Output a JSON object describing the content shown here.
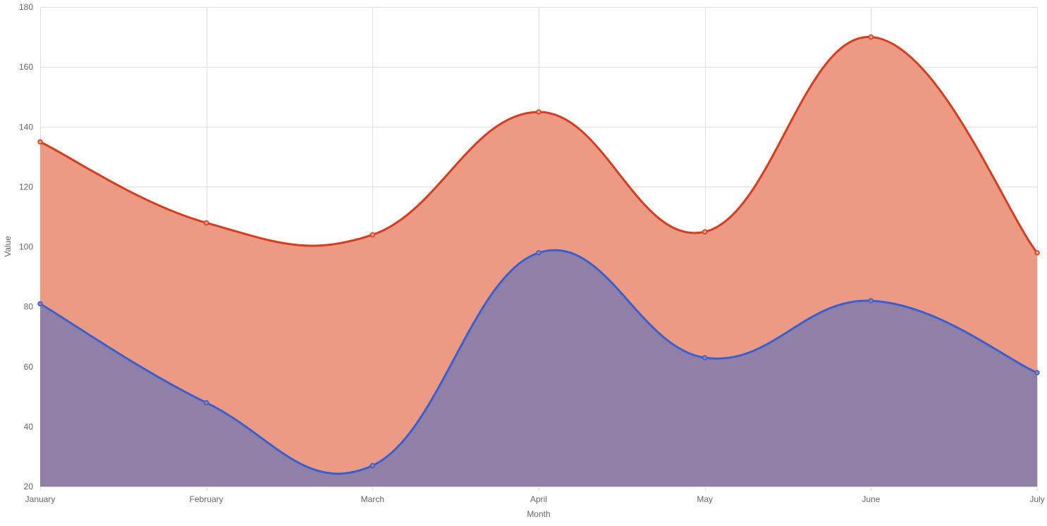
{
  "chart_data": {
    "type": "area",
    "stacked": false,
    "smooth": true,
    "title": "",
    "xlabel": "Month",
    "ylabel": "Value",
    "categories": [
      "January",
      "February",
      "March",
      "April",
      "May",
      "June",
      "July"
    ],
    "ylim": [
      20,
      180
    ],
    "yticks": [
      20,
      40,
      60,
      80,
      100,
      120,
      140,
      160,
      180
    ],
    "grid": true,
    "legend": "none",
    "series": [
      {
        "values": [
          135,
          108,
          104,
          145,
          105,
          170,
          98
        ],
        "line_color": "#d63d1e",
        "fill_color": "#ec9a83"
      },
      {
        "values": [
          81,
          48,
          27,
          98,
          63,
          82,
          58
        ],
        "line_color": "#3d5fcc",
        "fill_color": "#9080a8"
      }
    ]
  }
}
